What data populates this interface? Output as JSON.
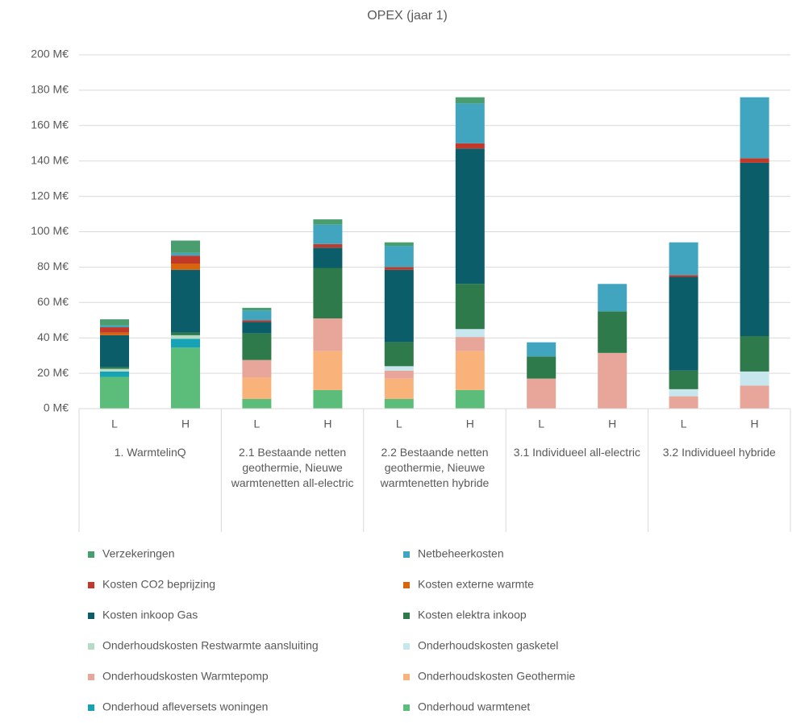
{
  "chart_data": {
    "type": "stacked_bar",
    "title": "OPEX (jaar 1)",
    "categories": [
      "L",
      "H",
      "L",
      "H",
      "L",
      "H",
      "L",
      "H",
      "L",
      "H"
    ],
    "groups": [
      "1. WarmtelinQ",
      "2.1 Bestaande netten geothermie, Nieuwe warmtenetten all-electric",
      "2.2 Bestaande netten geothermie, Nieuwe warmtenetten hybride",
      "3.1 Individueel all-electric",
      "3.2 Individueel hybride"
    ],
    "ylim": [
      0,
      200
    ],
    "yticks": [
      {
        "value": 0,
        "label": "0 M€"
      },
      {
        "value": 20,
        "label": "20 M€"
      },
      {
        "value": 40,
        "label": "40 M€"
      },
      {
        "value": 60,
        "label": "60 M€"
      },
      {
        "value": 80,
        "label": "80 M€"
      },
      {
        "value": 100,
        "label": "100 M€"
      },
      {
        "value": 120,
        "label": "120 M€"
      },
      {
        "value": 140,
        "label": "140 M€"
      },
      {
        "value": 160,
        "label": "160 M€"
      },
      {
        "value": 180,
        "label": "180 M€"
      },
      {
        "value": 200,
        "label": "200 M€"
      }
    ],
    "grid": true,
    "legend": "bottom",
    "series": [
      {
        "name": "Verzekeringen",
        "color": "#4a9d6f",
        "values": [
          3.5,
          7,
          1.5,
          3,
          2,
          3.5,
          0,
          0,
          0,
          0
        ]
      },
      {
        "name": "Netbeheerkosten",
        "color": "#42a5c0",
        "values": [
          1,
          1.5,
          5.5,
          11,
          12,
          22.5,
          8,
          15.5,
          18.5,
          34.5
        ]
      },
      {
        "name": "Kosten CO2 beprijzing",
        "color": "#c0392b",
        "values": [
          3,
          4.5,
          1,
          2,
          1.5,
          3,
          0,
          0,
          1,
          2.5
        ]
      },
      {
        "name": "Kosten externe warmte",
        "color": "#d9640e",
        "values": [
          1.5,
          3.5,
          0,
          0,
          0,
          0,
          0,
          0,
          0,
          0
        ]
      },
      {
        "name": "Kosten inkoop Gas",
        "color": "#0b5d69",
        "values": [
          18,
          35.5,
          6.5,
          11.5,
          41,
          76.5,
          0,
          0,
          53,
          98
        ]
      },
      {
        "name": "Kosten elektra inkoop",
        "color": "#2e7a4a",
        "values": [
          1,
          1.5,
          15,
          28.5,
          13.5,
          25.5,
          12.5,
          23.5,
          10.5,
          20
        ]
      },
      {
        "name": "Onderhoudskosten Restwarmte aansluiting",
        "color": "#b6dcc6",
        "values": [
          1.5,
          2,
          0,
          0,
          0,
          0,
          0,
          0,
          0,
          0
        ]
      },
      {
        "name": "Onderhoudskosten gasketel",
        "color": "#c7e6ee",
        "values": [
          0,
          0,
          0,
          0,
          2.5,
          4.5,
          0,
          0,
          4,
          8
        ]
      },
      {
        "name": "Onderhoudskosten Warmtepomp",
        "color": "#e8a69a",
        "values": [
          0,
          0,
          10,
          18.5,
          4.5,
          8,
          17,
          31.5,
          7,
          13
        ]
      },
      {
        "name": "Onderhoudskosten Geothermie",
        "color": "#f8b27a",
        "values": [
          0,
          0,
          12,
          22,
          11.5,
          22,
          0,
          0,
          0,
          0
        ]
      },
      {
        "name": "Onderhoud afleversets woningen",
        "color": "#15a3b5",
        "values": [
          3,
          5,
          0,
          0,
          0,
          0,
          0,
          0,
          0,
          0
        ]
      },
      {
        "name": "Onderhoud warmtenet",
        "color": "#5cbd7a",
        "values": [
          18,
          34.5,
          5.5,
          10.5,
          5.5,
          10.5,
          0,
          0,
          0,
          0
        ]
      }
    ]
  }
}
